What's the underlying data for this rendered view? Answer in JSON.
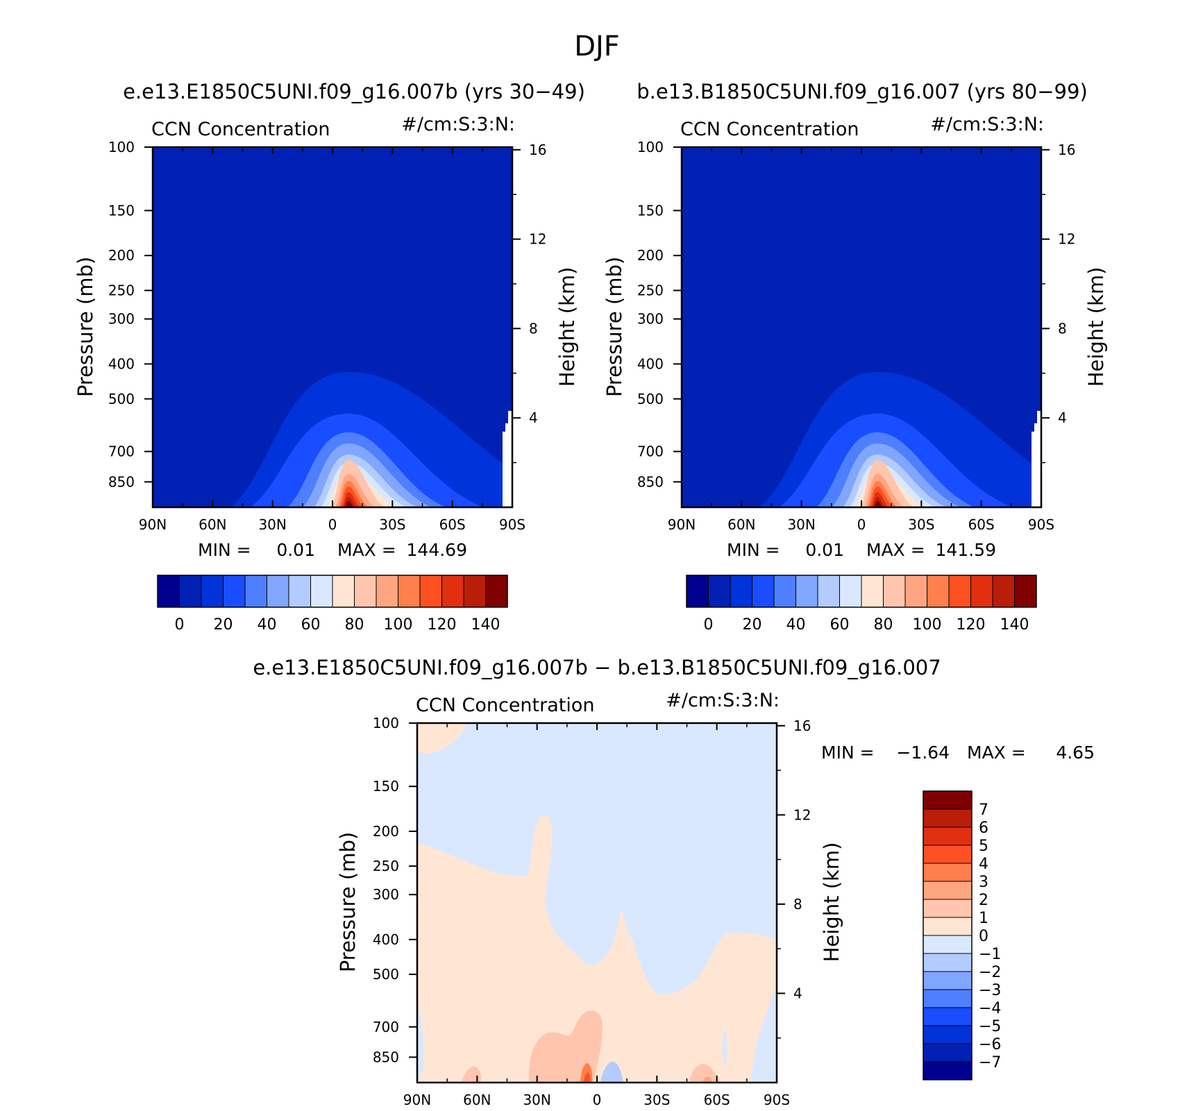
{
  "figure": {
    "title": "DJF",
    "left_case": "e.e13.E1850C5UNI.f09_g16.007b (yrs 30−49)",
    "right_case": "b.e13.B1850C5UNI.f09_g16.007 (yrs 80−99)",
    "diff_title": "e.e13.E1850C5UNI.f09_g16.007b − b.e13.B1850C5UNI.f09_g16.007"
  },
  "chart_data": [
    {
      "type": "heatmap",
      "variable": "CCN Concentration",
      "units": "#/cm:S:3:N:",
      "xlabel": "",
      "ylabel": "Pressure (mb)",
      "right_ylabel": "Height (km)",
      "x_ticks": [
        "90N",
        "60N",
        "30N",
        "0",
        "30S",
        "60S",
        "90S"
      ],
      "y_ticks": [
        100,
        150,
        200,
        250,
        300,
        400,
        500,
        700,
        850
      ],
      "height_ticks": [
        16,
        12,
        8,
        4
      ],
      "min_label": "MIN =",
      "min_value": "0.01",
      "max_label": "MAX =",
      "max_value": "144.69",
      "colorbar_levels": [
        -10,
        0,
        10,
        20,
        30,
        40,
        50,
        60,
        70,
        80,
        90,
        100,
        110,
        120,
        130,
        140,
        150
      ],
      "colorbar_labels": [
        "0",
        "20",
        "40",
        "60",
        "80",
        "100",
        "120",
        "140"
      ],
      "colors": [
        "#00008f",
        "#0021b3",
        "#0033d9",
        "#1a4dff",
        "#4d7fff",
        "#80a6ff",
        "#b3ccff",
        "#d9e8ff",
        "#ffe6d4",
        "#ffc6ad",
        "#ffa680",
        "#ff7f4d",
        "#ff5022",
        "#e03010",
        "#b81e08",
        "#800000"
      ],
      "core_lat": -8,
      "core_max": 144.69
    },
    {
      "type": "heatmap",
      "variable": "CCN Concentration",
      "units": "#/cm:S:3:N:",
      "xlabel": "",
      "ylabel": "Pressure (mb)",
      "right_ylabel": "Height (km)",
      "x_ticks": [
        "90N",
        "60N",
        "30N",
        "0",
        "30S",
        "60S",
        "90S"
      ],
      "y_ticks": [
        100,
        150,
        200,
        250,
        300,
        400,
        500,
        700,
        850
      ],
      "height_ticks": [
        16,
        12,
        8,
        4
      ],
      "min_label": "MIN =",
      "min_value": "0.01",
      "max_label": "MAX =",
      "max_value": "141.59",
      "colorbar_levels": [
        -10,
        0,
        10,
        20,
        30,
        40,
        50,
        60,
        70,
        80,
        90,
        100,
        110,
        120,
        130,
        140,
        150
      ],
      "colorbar_labels": [
        "0",
        "20",
        "40",
        "60",
        "80",
        "100",
        "120",
        "140"
      ],
      "colors": [
        "#00008f",
        "#0021b3",
        "#0033d9",
        "#1a4dff",
        "#4d7fff",
        "#80a6ff",
        "#b3ccff",
        "#d9e8ff",
        "#ffe6d4",
        "#ffc6ad",
        "#ffa680",
        "#ff7f4d",
        "#ff5022",
        "#e03010",
        "#b81e08",
        "#800000"
      ],
      "core_lat": -8,
      "core_max": 141.59
    },
    {
      "type": "heatmap",
      "variable": "CCN Concentration",
      "units": "#/cm:S:3:N:",
      "xlabel": "",
      "ylabel": "Pressure (mb)",
      "right_ylabel": "Height (km)",
      "x_ticks": [
        "90N",
        "60N",
        "30N",
        "0",
        "30S",
        "60S",
        "90S"
      ],
      "y_ticks": [
        100,
        150,
        200,
        250,
        300,
        400,
        500,
        700,
        850
      ],
      "height_ticks": [
        16,
        12,
        8,
        4
      ],
      "min_label": "MIN =",
      "min_value": "−1.64",
      "max_label": "MAX =",
      "max_value": "4.65",
      "colorbar_labels": [
        "7",
        "6",
        "5",
        "4",
        "3",
        "2",
        "1",
        "0",
        "−1",
        "−2",
        "−3",
        "−4",
        "−5",
        "−6",
        "−7"
      ],
      "colors_top_to_bottom": [
        "#800000",
        "#b81e08",
        "#e03010",
        "#ff5022",
        "#ff7f4d",
        "#ffa680",
        "#ffc6ad",
        "#ffe6d4",
        "#d9e8ff",
        "#b3ccff",
        "#80a6ff",
        "#4d7fff",
        "#1a4dff",
        "#0033d9",
        "#0021b3",
        "#00008f"
      ]
    }
  ]
}
